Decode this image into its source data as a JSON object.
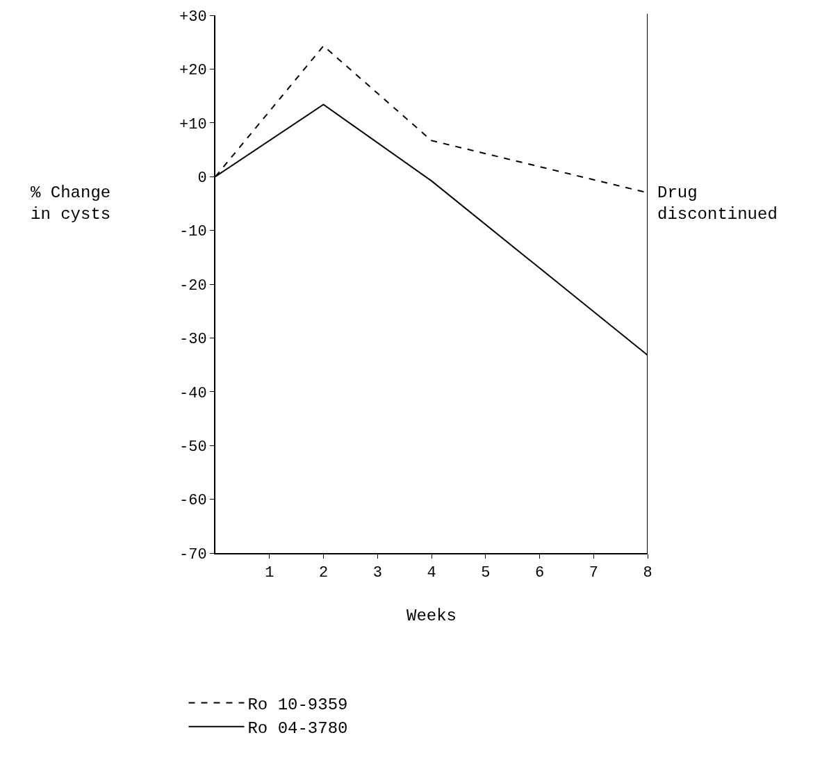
{
  "chart_data": {
    "type": "line",
    "xlabel": "Weeks",
    "ylabel": "% Change\nin cysts",
    "x": [
      0,
      2,
      4,
      8
    ],
    "series": [
      {
        "name": "Ro 10-9359",
        "color": "#000000",
        "line_style": "dashed",
        "values": [
          0,
          24.3,
          6.7,
          -3
        ]
      },
      {
        "name": "Ro 04-3780",
        "color": "#000000",
        "line_style": "solid",
        "values": [
          0,
          13.4,
          -0.8,
          -33.2
        ]
      }
    ],
    "xlim": [
      0,
      8
    ],
    "xticks": [
      1,
      2,
      3,
      4,
      5,
      6,
      7,
      8
    ],
    "ylim": [
      -70,
      30
    ],
    "yticks": [
      {
        "value": 30,
        "label": "+30"
      },
      {
        "value": 20,
        "label": "+20"
      },
      {
        "value": 10,
        "label": "+10"
      },
      0,
      -10,
      -20,
      -30,
      -40,
      -50,
      -60,
      -70
    ],
    "ref_lines": [
      {
        "axis": "x",
        "value": 8,
        "label": "Drug\ndiscontinued",
        "color": "#000000",
        "line_style": "solid"
      }
    ],
    "legend": "bottom",
    "marker": "none"
  }
}
